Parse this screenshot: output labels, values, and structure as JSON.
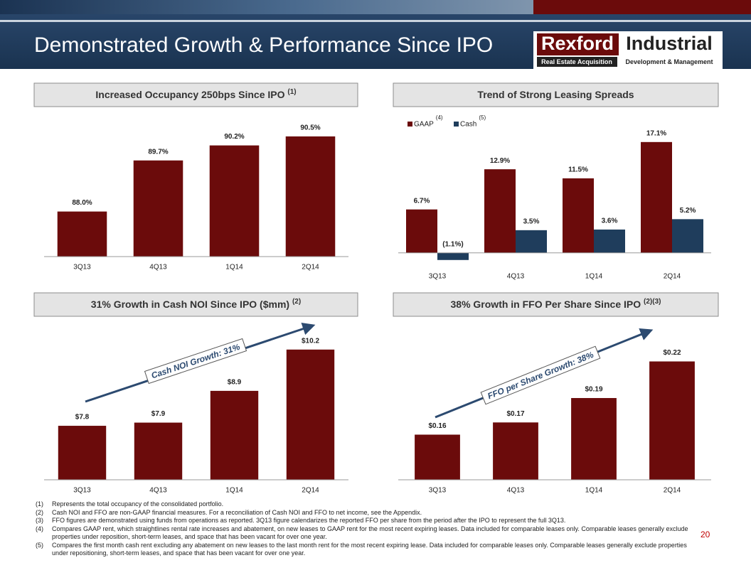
{
  "header": {
    "title": "Demonstrated Growth & Performance Since IPO"
  },
  "logo": {
    "brand_left": "Rexford",
    "brand_right": "Industrial",
    "tag_left": "Real Estate Acquisition",
    "tag_right": "Development & Management"
  },
  "chart_data": [
    {
      "type": "bar",
      "title": "Increased Occupancy 250bps Since IPO",
      "title_note": "(1)",
      "categories": [
        "3Q13",
        "4Q13",
        "1Q14",
        "2Q14"
      ],
      "values": [
        88.0,
        89.7,
        90.2,
        90.5
      ],
      "value_labels": [
        "88.0%",
        "89.7%",
        "90.2%",
        "90.5%"
      ],
      "color": "#6b0b0b",
      "ylim": [
        86.5,
        90.9
      ]
    },
    {
      "type": "bar",
      "title": "Trend of Strong Leasing Spreads",
      "categories": [
        "3Q13",
        "4Q13",
        "1Q14",
        "2Q14"
      ],
      "series": [
        {
          "name": "GAAP",
          "name_note": "(4)",
          "color": "#6b0b0b",
          "values": [
            6.7,
            12.9,
            11.5,
            17.1
          ],
          "value_labels": [
            "6.7%",
            "12.9%",
            "11.5%",
            "17.1%"
          ]
        },
        {
          "name": "Cash",
          "name_note": "(5)",
          "color": "#1f3d5c",
          "values": [
            -1.1,
            3.5,
            3.6,
            5.2
          ],
          "value_labels": [
            "(1.1%)",
            "3.5%",
            "3.6%",
            "5.2%"
          ]
        }
      ],
      "ylim": [
        -2,
        19
      ],
      "legend": "top-left"
    },
    {
      "type": "bar",
      "title": "31% Growth in Cash NOI Since IPO ($mm)",
      "title_note": "(2)",
      "categories": [
        "3Q13",
        "4Q13",
        "1Q14",
        "2Q14"
      ],
      "values": [
        7.8,
        7.9,
        8.9,
        10.2
      ],
      "value_labels": [
        "$7.8",
        "$7.9",
        "$8.9",
        "$10.2"
      ],
      "color": "#6b0b0b",
      "ylim": [
        6.1,
        10.8
      ],
      "annotation": "Cash NOI Growth: 31%"
    },
    {
      "type": "bar",
      "title": "38% Growth in FFO Per Share Since IPO",
      "title_note": "(2)(3)",
      "categories": [
        "3Q13",
        "4Q13",
        "1Q14",
        "2Q14"
      ],
      "values": [
        0.16,
        0.17,
        0.19,
        0.22
      ],
      "value_labels": [
        "$0.16",
        "$0.17",
        "$0.19",
        "$0.22"
      ],
      "color": "#6b0b0b",
      "ylim": [
        0.123,
        0.25
      ],
      "annotation": "FFO per Share Growth: 38%"
    }
  ],
  "footnotes": [
    {
      "number": "(1)",
      "text": "Represents the total occupancy of the consolidated portfolio."
    },
    {
      "number": "(2)",
      "text": "Cash NOI and FFO are non-GAAP financial measures. For a reconciliation of Cash NOI and FFO to net income, see the Appendix."
    },
    {
      "number": "(3)",
      "text": "FFO figures are demonstrated using funds from operations as reported. 3Q13 figure calendarizes the reported FFO per share from the period after the IPO to represent the full 3Q13."
    },
    {
      "number": "(4)",
      "text": "Compares GAAP rent, which straightlines rental rate increases and abatement, on new leases to GAAP rent for the most recent expiring leases. Data included for comparable leases only. Comparable leases generally exclude properties under reposition, short-term leases, and space that has been vacant for over one year."
    },
    {
      "number": "(5)",
      "text": "Compares the first month cash rent excluding any abatement on new leases to the last month rent for the most recent expiring lease. Data included for comparable leases only. Comparable leases generally exclude properties under repositioning, short-term leases, and space that has been vacant for over one year."
    }
  ],
  "page_number": "20"
}
